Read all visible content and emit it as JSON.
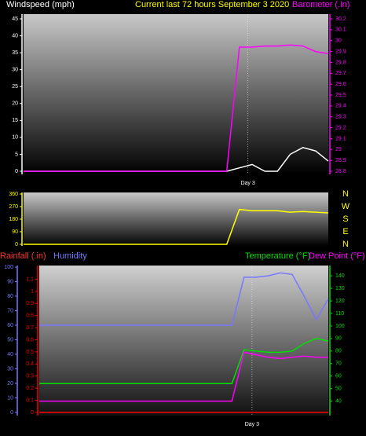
{
  "chart_data": [
    {
      "type": "line",
      "title": "Current last 72 hours September 3 2020",
      "x": [
        0,
        3,
        6,
        9,
        12,
        15,
        18,
        21,
        24,
        27,
        30,
        33,
        36,
        39,
        42,
        45,
        48,
        51,
        54,
        57,
        60,
        63,
        66,
        69,
        72
      ],
      "xlim": [
        0,
        72
      ],
      "xticks": [
        {
          "value": 53,
          "label": "Day 3"
        }
      ],
      "ylim": [
        0,
        45
      ],
      "yticks": [
        0,
        5,
        10,
        15,
        20,
        25,
        30,
        35,
        40,
        45
      ],
      "y2lim": [
        28.8,
        30.2
      ],
      "y2ticks": [
        28.8,
        28.9,
        29,
        29.1,
        29.2,
        29.3,
        29.4,
        29.5,
        29.6,
        29.7,
        29.8,
        29.9,
        30,
        30.1,
        30.2
      ],
      "series": [
        {
          "name": "Windspeed (mph)",
          "color": "#ffffff",
          "values": [
            0,
            0,
            0,
            0,
            0,
            0,
            0,
            0,
            0,
            0,
            0,
            0,
            0,
            0,
            0,
            0,
            0,
            1,
            2,
            0,
            0,
            5,
            7,
            6,
            3
          ]
        },
        {
          "name": "Barometer (.in)",
          "color": "#ff00ff",
          "axis": "y2",
          "values": [
            28.8,
            28.8,
            28.8,
            28.8,
            28.8,
            28.8,
            28.8,
            28.8,
            28.8,
            28.8,
            28.8,
            28.8,
            28.8,
            28.8,
            28.8,
            28.8,
            28.8,
            29.94,
            29.94,
            29.95,
            29.95,
            29.96,
            29.95,
            29.9,
            29.88
          ]
        }
      ]
    },
    {
      "type": "line",
      "x": [
        0,
        3,
        6,
        9,
        12,
        15,
        18,
        21,
        24,
        27,
        30,
        33,
        36,
        39,
        42,
        45,
        48,
        51,
        54,
        57,
        60,
        63,
        66,
        69,
        72
      ],
      "xlim": [
        0,
        72
      ],
      "ylim": [
        0,
        360
      ],
      "yticks": [
        0,
        90,
        180,
        270,
        360
      ],
      "y2lim": [
        0,
        360
      ],
      "y2ticks": [
        {
          "value": 360,
          "label": "N"
        },
        {
          "value": 270,
          "label": "W"
        },
        {
          "value": 180,
          "label": "S"
        },
        {
          "value": 90,
          "label": "E"
        },
        {
          "value": 0,
          "label": "N"
        }
      ],
      "series": [
        {
          "color": "#ffff00",
          "values": [
            0,
            0,
            0,
            0,
            0,
            0,
            0,
            0,
            0,
            0,
            0,
            0,
            0,
            0,
            0,
            0,
            0,
            250,
            240,
            240,
            240,
            230,
            235,
            230,
            225
          ]
        }
      ]
    },
    {
      "type": "line",
      "x": [
        0,
        3,
        6,
        9,
        12,
        15,
        18,
        21,
        24,
        27,
        30,
        33,
        36,
        39,
        42,
        45,
        48,
        51,
        54,
        57,
        60,
        63,
        66,
        69,
        72
      ],
      "xlim": [
        0,
        72
      ],
      "xticks": [
        {
          "value": 53,
          "label": "Day 3"
        }
      ],
      "ylim": [
        0,
        1.2
      ],
      "yticks": [
        0,
        0.1,
        0.2,
        0.3,
        0.4,
        0.5,
        0.6,
        0.7,
        0.8,
        0.9,
        1,
        1.1
      ],
      "y3lim": [
        0,
        100
      ],
      "y3ticks": [
        0,
        10,
        20,
        30,
        40,
        50,
        60,
        70,
        80,
        90,
        100
      ],
      "y2lim": [
        31,
        147
      ],
      "y2ticks": [
        40,
        50,
        60,
        70,
        80,
        90,
        100,
        110,
        120,
        130,
        140
      ],
      "series": [
        {
          "name": "Rainfall (.in)",
          "color": "#ff0000",
          "values": [
            0,
            0,
            0,
            0,
            0,
            0,
            0,
            0,
            0,
            0,
            0,
            0,
            0,
            0,
            0,
            0,
            0,
            0,
            0,
            0,
            0,
            0,
            0,
            0,
            0
          ]
        },
        {
          "name": "Humidity",
          "color": "#7777ff",
          "axis": "y3",
          "values": [
            60,
            60,
            60,
            60,
            60,
            60,
            60,
            60,
            60,
            60,
            60,
            60,
            60,
            60,
            60,
            60,
            60,
            93,
            93,
            94,
            96,
            95,
            80,
            64,
            78
          ]
        },
        {
          "name": "Temperature (°F)",
          "color": "#00e000",
          "axis": "y2",
          "values": [
            54,
            54,
            54,
            54,
            54,
            54,
            54,
            54,
            54,
            54,
            54,
            54,
            54,
            54,
            54,
            54,
            54,
            81,
            80,
            79,
            79,
            80,
            86,
            90,
            88
          ]
        },
        {
          "name": "Dew Point (°F)",
          "color": "#ff00ff",
          "axis": "y2",
          "values": [
            40,
            40,
            40,
            40,
            40,
            40,
            40,
            40,
            40,
            40,
            40,
            40,
            40,
            40,
            40,
            40,
            40,
            79,
            77,
            75,
            74,
            75,
            76,
            75,
            75
          ]
        }
      ]
    }
  ]
}
